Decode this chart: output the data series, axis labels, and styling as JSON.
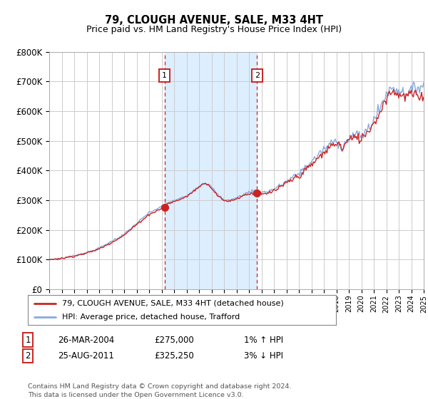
{
  "title": "79, CLOUGH AVENUE, SALE, M33 4HT",
  "subtitle": "Price paid vs. HM Land Registry's House Price Index (HPI)",
  "ylim": [
    0,
    800000
  ],
  "yticks": [
    0,
    100000,
    200000,
    300000,
    400000,
    500000,
    600000,
    700000,
    800000
  ],
  "ytick_labels": [
    "£0",
    "£100K",
    "£200K",
    "£300K",
    "£400K",
    "£500K",
    "£600K",
    "£700K",
    "£800K"
  ],
  "x_start_year": 1995,
  "x_end_year": 2025,
  "sale1_date": 2004.23,
  "sale1_price": 275000,
  "sale2_date": 2011.64,
  "sale2_price": 325250,
  "sale1_label": "26-MAR-2004",
  "sale2_label": "25-AUG-2011",
  "sale1_hpi_pct": "1% ↑ HPI",
  "sale2_hpi_pct": "3% ↓ HPI",
  "legend_line1": "79, CLOUGH AVENUE, SALE, M33 4HT (detached house)",
  "legend_line2": "HPI: Average price, detached house, Trafford",
  "footer": "Contains HM Land Registry data © Crown copyright and database right 2024.\nThis data is licensed under the Open Government Licence v3.0.",
  "line_color_red": "#cc2222",
  "line_color_blue": "#88aadd",
  "shaded_color": "#ddeeff",
  "background_color": "#ffffff",
  "grid_color": "#cccccc",
  "hpi_keypoints": [
    [
      1995.0,
      100000
    ],
    [
      1996.0,
      104000
    ],
    [
      1997.0,
      113000
    ],
    [
      1998.0,
      123000
    ],
    [
      1999.0,
      138000
    ],
    [
      2000.0,
      162000
    ],
    [
      2001.0,
      185000
    ],
    [
      2002.0,
      222000
    ],
    [
      2003.0,
      258000
    ],
    [
      2004.0,
      278000
    ],
    [
      2004.5,
      292000
    ],
    [
      2005.0,
      298000
    ],
    [
      2006.0,
      315000
    ],
    [
      2007.0,
      348000
    ],
    [
      2007.5,
      358000
    ],
    [
      2008.0,
      345000
    ],
    [
      2008.5,
      318000
    ],
    [
      2009.0,
      302000
    ],
    [
      2009.5,
      300000
    ],
    [
      2010.0,
      308000
    ],
    [
      2010.5,
      318000
    ],
    [
      2011.0,
      328000
    ],
    [
      2011.5,
      332000
    ],
    [
      2012.0,
      325000
    ],
    [
      2012.5,
      330000
    ],
    [
      2013.0,
      338000
    ],
    [
      2013.5,
      348000
    ],
    [
      2014.0,
      362000
    ],
    [
      2015.0,
      390000
    ],
    [
      2016.0,
      430000
    ],
    [
      2016.5,
      450000
    ],
    [
      2017.0,
      470000
    ],
    [
      2017.5,
      490000
    ],
    [
      2018.0,
      500000
    ],
    [
      2018.5,
      480000
    ],
    [
      2019.0,
      510000
    ],
    [
      2019.5,
      520000
    ],
    [
      2020.0,
      515000
    ],
    [
      2020.5,
      540000
    ],
    [
      2021.0,
      570000
    ],
    [
      2021.5,
      610000
    ],
    [
      2022.0,
      660000
    ],
    [
      2022.5,
      680000
    ],
    [
      2023.0,
      670000
    ],
    [
      2023.5,
      660000
    ],
    [
      2024.0,
      670000
    ],
    [
      2024.5,
      680000
    ],
    [
      2025.0,
      690000
    ]
  ],
  "red_keypoints": [
    [
      1995.0,
      100000
    ],
    [
      1996.0,
      104000
    ],
    [
      1997.0,
      112000
    ],
    [
      1998.0,
      122000
    ],
    [
      1999.0,
      136000
    ],
    [
      2000.0,
      158000
    ],
    [
      2001.0,
      182000
    ],
    [
      2002.0,
      218000
    ],
    [
      2003.0,
      252000
    ],
    [
      2004.0,
      272000
    ],
    [
      2004.23,
      275000
    ],
    [
      2004.5,
      288000
    ],
    [
      2005.0,
      295000
    ],
    [
      2006.0,
      312000
    ],
    [
      2007.0,
      345000
    ],
    [
      2007.5,
      360000
    ],
    [
      2008.0,
      342000
    ],
    [
      2008.5,
      315000
    ],
    [
      2009.0,
      298000
    ],
    [
      2009.5,
      298000
    ],
    [
      2010.0,
      305000
    ],
    [
      2010.5,
      315000
    ],
    [
      2011.0,
      322000
    ],
    [
      2011.64,
      325250
    ],
    [
      2012.0,
      318000
    ],
    [
      2012.5,
      322000
    ],
    [
      2013.0,
      332000
    ],
    [
      2013.5,
      342000
    ],
    [
      2014.0,
      358000
    ],
    [
      2015.0,
      382000
    ],
    [
      2016.0,
      418000
    ],
    [
      2016.5,
      440000
    ],
    [
      2017.0,
      458000
    ],
    [
      2017.5,
      480000
    ],
    [
      2018.0,
      495000
    ],
    [
      2018.5,
      475000
    ],
    [
      2019.0,
      505000
    ],
    [
      2019.5,
      510000
    ],
    [
      2020.0,
      508000
    ],
    [
      2020.5,
      532000
    ],
    [
      2021.0,
      560000
    ],
    [
      2021.5,
      595000
    ],
    [
      2022.0,
      648000
    ],
    [
      2022.5,
      668000
    ],
    [
      2023.0,
      658000
    ],
    [
      2023.5,
      648000
    ],
    [
      2024.0,
      660000
    ],
    [
      2024.5,
      648000
    ],
    [
      2025.0,
      652000
    ]
  ]
}
